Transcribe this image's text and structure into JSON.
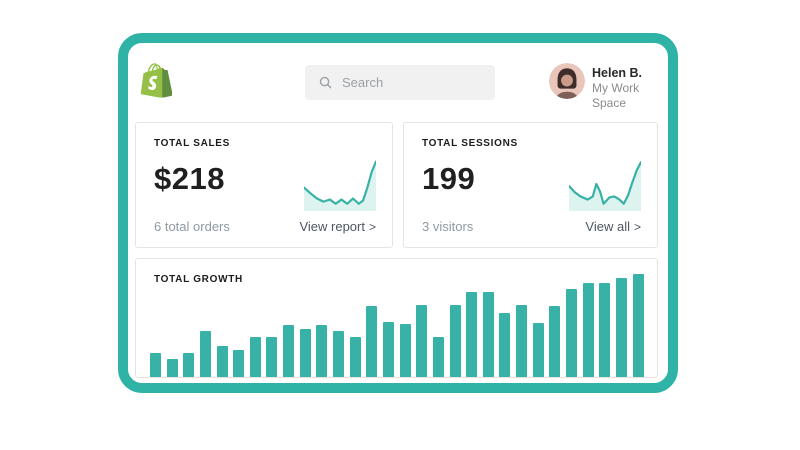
{
  "window": {
    "background": "#ffffff",
    "frame_color": "#2fb3a7"
  },
  "header": {
    "logo_alt": "Shopify",
    "search": {
      "placeholder": "Search"
    },
    "user": {
      "name": "Helen B.",
      "workspace": "My Work Space"
    }
  },
  "cards": {
    "sales": {
      "title": "TOTAL SALES",
      "value": "$218",
      "subtitle": "6 total orders",
      "link_label": "View report",
      "chevron": ">"
    },
    "sessions": {
      "title": "TOTAL SESSIONS",
      "value": "199",
      "subtitle": "3 visitors",
      "link_label": "View all",
      "chevron": ">"
    },
    "growth": {
      "title": "TOTAL GROWTH"
    }
  },
  "colors": {
    "accent_teal": "#38b2a7",
    "frame_teal": "#2fb3a7",
    "sparkline_fill": "#ddf3f0",
    "logo_green": "#95bf47",
    "logo_green_dark": "#5e8e3e",
    "card_border": "#e4e4e4",
    "text_dark": "#1f262d",
    "text_gray": "#8f9aa3",
    "link_gray": "#4d5661"
  },
  "chart_data": [
    {
      "type": "line",
      "name": "total-sales-sparkline",
      "title": "Total sales trend",
      "axes": "none",
      "coords": "percent, y measured downward from top",
      "points": [
        [
          0,
          55
        ],
        [
          9,
          66
        ],
        [
          18,
          76
        ],
        [
          27,
          82
        ],
        [
          36,
          78
        ],
        [
          44,
          86
        ],
        [
          52,
          78
        ],
        [
          60,
          86
        ],
        [
          68,
          76
        ],
        [
          76,
          86
        ],
        [
          82,
          80
        ],
        [
          88,
          55
        ],
        [
          94,
          25
        ],
        [
          100,
          5
        ]
      ]
    },
    {
      "type": "line",
      "name": "total-sessions-sparkline",
      "title": "Total sessions trend",
      "axes": "none",
      "coords": "percent, y measured downward from top",
      "points": [
        [
          0,
          52
        ],
        [
          8,
          64
        ],
        [
          16,
          72
        ],
        [
          26,
          78
        ],
        [
          33,
          72
        ],
        [
          38,
          48
        ],
        [
          43,
          62
        ],
        [
          48,
          86
        ],
        [
          56,
          74
        ],
        [
          63,
          72
        ],
        [
          70,
          78
        ],
        [
          76,
          86
        ],
        [
          82,
          70
        ],
        [
          88,
          45
        ],
        [
          94,
          22
        ],
        [
          100,
          6
        ]
      ]
    },
    {
      "type": "bar",
      "name": "total-growth-bars",
      "title": "TOTAL GROWTH",
      "xlabel": "",
      "ylabel": "",
      "axes": "none",
      "ylim": [
        0,
        103
      ],
      "values": [
        24,
        18,
        24,
        46,
        31,
        27,
        40,
        40,
        52,
        48,
        52,
        46,
        40,
        71,
        55,
        53,
        72,
        40,
        72,
        85,
        85,
        64,
        72,
        54,
        71,
        88,
        94,
        94,
        99,
        103
      ]
    }
  ]
}
